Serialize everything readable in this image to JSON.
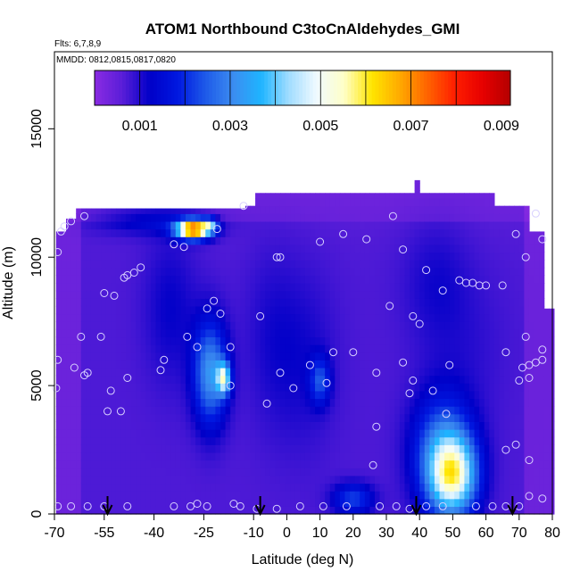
{
  "chart_data": {
    "type": "heatmap",
    "title": "ATOM1 Northbound C3toCnAldehydes_GMI",
    "flights_note": "Flts: 6,7,8,9",
    "dates_note": "MMDD: 0812,0815,0817,0820",
    "xlabel": "Latitude (deg N)",
    "ylabel": "Altitude (m)",
    "xlim": [
      -70,
      80
    ],
    "ylim": [
      0,
      18000
    ],
    "x_ticks": [
      -70,
      -55,
      -40,
      -25,
      -10,
      0,
      10,
      20,
      30,
      40,
      50,
      60,
      70,
      80
    ],
    "x_tick_labels": [
      "-70",
      "-55",
      "-40",
      "-25",
      "-10",
      "0",
      "10",
      "20",
      "30",
      "40",
      "50",
      "60",
      "70",
      "80"
    ],
    "y_ticks": [
      0,
      5000,
      10000,
      15000
    ],
    "y_tick_labels": [
      "0",
      "5000",
      "10000",
      "15000"
    ],
    "colorbar": {
      "min": 0,
      "max": 0.0092,
      "tick_values": [
        0.001,
        0.003,
        0.005,
        0.007,
        0.009
      ],
      "tick_labels": [
        "0.001",
        "0.003",
        "0.005",
        "0.007",
        "0.009"
      ],
      "colors": [
        "#8a2be2",
        "#5a1ed8",
        "#0000c8",
        "#0018e0",
        "#1e5ae8",
        "#3c8cf0",
        "#1eb4ff",
        "#a0dcff",
        "#f0faff",
        "#ffffc8",
        "#ffe600",
        "#ffaa00",
        "#ff6400",
        "#ff1e00",
        "#e60000",
        "#b40000"
      ]
    },
    "hotspots": [
      {
        "lat": 40,
        "alt": 14000,
        "sx": 200,
        "sy": 2500,
        "v": -0.0002
      },
      {
        "lat": 50,
        "alt": 1500,
        "sx": 7,
        "sy": 1500,
        "v": 0.004
      },
      {
        "lat": 47,
        "alt": 2500,
        "sx": 9,
        "sy": 2200,
        "v": 0.002
      },
      {
        "lat": -23,
        "alt": 5500,
        "sx": 5,
        "sy": 2000,
        "v": 0.0025
      },
      {
        "lat": -19,
        "alt": 5300,
        "sx": 2,
        "sy": 600,
        "v": 0.0035
      },
      {
        "lat": 10,
        "alt": 5200,
        "sx": 3,
        "sy": 900,
        "v": 0.0015
      },
      {
        "lat": -28,
        "alt": 11100,
        "sx": 5,
        "sy": 350,
        "v": 0.007
      },
      {
        "lat": -23,
        "alt": 11300,
        "sx": 2,
        "sy": 250,
        "v": 0.002
      },
      {
        "lat": -40,
        "alt": 11500,
        "sx": 18,
        "sy": 600,
        "v": 0.0008
      },
      {
        "lat": 20,
        "alt": 600,
        "sx": 6,
        "sy": 600,
        "v": 0.0015
      },
      {
        "lat": -5,
        "alt": 7000,
        "sx": 8,
        "sy": 3500,
        "v": 0.0003
      },
      {
        "lat": 55,
        "alt": 6500,
        "sx": 12,
        "sy": 3000,
        "v": 0.0002
      }
    ],
    "coverage": [
      {
        "lat": -69.5,
        "top": 11000
      },
      {
        "lat": -66,
        "top": 11500
      },
      {
        "lat": -64,
        "top": 11900
      },
      {
        "lat": -55,
        "top": 11900
      },
      {
        "lat": -45,
        "top": 11900
      },
      {
        "lat": -30,
        "top": 11900
      },
      {
        "lat": -12,
        "top": 12000
      },
      {
        "lat": -10,
        "top": 12500
      },
      {
        "lat": 38,
        "top": 12500
      },
      {
        "lat": 39,
        "top": 13000
      },
      {
        "lat": 40,
        "top": 12500
      },
      {
        "lat": 61,
        "top": 12500
      },
      {
        "lat": 62,
        "top": 12000
      },
      {
        "lat": 72,
        "top": 12000
      },
      {
        "lat": 73,
        "top": 11000
      },
      {
        "lat": 76,
        "top": 11000
      },
      {
        "lat": 77,
        "top": 8000
      },
      {
        "lat": 80,
        "top": 6500
      },
      {
        "lat": 80,
        "top": 0
      }
    ],
    "observations": [
      [
        -69,
        6000
      ],
      [
        -69.5,
        4900
      ],
      [
        -69,
        10200
      ],
      [
        -68,
        11000
      ],
      [
        -67,
        11200
      ],
      [
        -65,
        11400
      ],
      [
        -61,
        11600
      ],
      [
        -64,
        5700
      ],
      [
        -62,
        6900
      ],
      [
        -61,
        5400
      ],
      [
        -60,
        5500
      ],
      [
        -56,
        6900
      ],
      [
        -55,
        8600
      ],
      [
        -52,
        8500
      ],
      [
        -49,
        9200
      ],
      [
        -48,
        9300
      ],
      [
        -46,
        9400
      ],
      [
        -44,
        9600
      ],
      [
        -53,
        4800
      ],
      [
        -54,
        4000
      ],
      [
        -50,
        4000
      ],
      [
        -48,
        5300
      ],
      [
        -38,
        5600
      ],
      [
        -37,
        6000
      ],
      [
        -30,
        6900
      ],
      [
        -27,
        6500
      ],
      [
        -24,
        8000
      ],
      [
        -22,
        8300
      ],
      [
        -20,
        7800
      ],
      [
        -17,
        6500
      ],
      [
        -34,
        10500
      ],
      [
        -31,
        10400
      ],
      [
        -21,
        11100
      ],
      [
        -13,
        12000
      ],
      [
        -3,
        10000
      ],
      [
        -8,
        7700
      ],
      [
        -17,
        5000
      ],
      [
        -6,
        4300
      ],
      [
        -2,
        5500
      ],
      [
        2,
        4900
      ],
      [
        7,
        5800
      ],
      [
        12,
        5100
      ],
      [
        14,
        6300
      ],
      [
        20,
        6300
      ],
      [
        -2,
        10000
      ],
      [
        10,
        10600
      ],
      [
        17,
        10900
      ],
      [
        24,
        10700
      ],
      [
        32,
        11600
      ],
      [
        35,
        10300
      ],
      [
        38,
        7700
      ],
      [
        40,
        7400
      ],
      [
        42,
        9500
      ],
      [
        47,
        8700
      ],
      [
        52,
        9100
      ],
      [
        54,
        9000
      ],
      [
        56,
        9000
      ],
      [
        58,
        8900
      ],
      [
        60,
        8900
      ],
      [
        65,
        8900
      ],
      [
        31,
        8100
      ],
      [
        35,
        5900
      ],
      [
        37,
        4700
      ],
      [
        38,
        5200
      ],
      [
        44,
        4800
      ],
      [
        48,
        3900
      ],
      [
        49,
        5800
      ],
      [
        27,
        3400
      ],
      [
        26,
        1900
      ],
      [
        27,
        5500
      ],
      [
        66,
        2500
      ],
      [
        69,
        2700
      ],
      [
        71,
        5700
      ],
      [
        73,
        5800
      ],
      [
        70,
        5200
      ],
      [
        73,
        5300
      ],
      [
        75,
        5900
      ],
      [
        77,
        6400
      ],
      [
        77,
        6000
      ],
      [
        72,
        6900
      ],
      [
        66,
        6300
      ],
      [
        69,
        10900
      ],
      [
        72,
        10000
      ],
      [
        75,
        11700
      ],
      [
        77,
        10700
      ],
      [
        73,
        2100
      ],
      [
        73,
        700
      ],
      [
        77,
        600
      ],
      [
        -69,
        300
      ],
      [
        -65,
        300
      ],
      [
        -60,
        300
      ],
      [
        -55,
        300
      ],
      [
        -48,
        300
      ],
      [
        -34,
        300
      ],
      [
        -29,
        300
      ],
      [
        -24,
        300
      ],
      [
        -14,
        300
      ],
      [
        -9,
        200
      ],
      [
        -3,
        200
      ],
      [
        4,
        300
      ],
      [
        11,
        300
      ],
      [
        18,
        300
      ],
      [
        28,
        300
      ],
      [
        33,
        300
      ],
      [
        37,
        200
      ],
      [
        42,
        300
      ],
      [
        47,
        300
      ],
      [
        57,
        300
      ],
      [
        62,
        300
      ],
      [
        66,
        300
      ],
      [
        70,
        300
      ],
      [
        -27,
        400
      ],
      [
        -16,
        400
      ]
    ],
    "arrows_lat": [
      -54,
      -8,
      39,
      68
    ]
  }
}
